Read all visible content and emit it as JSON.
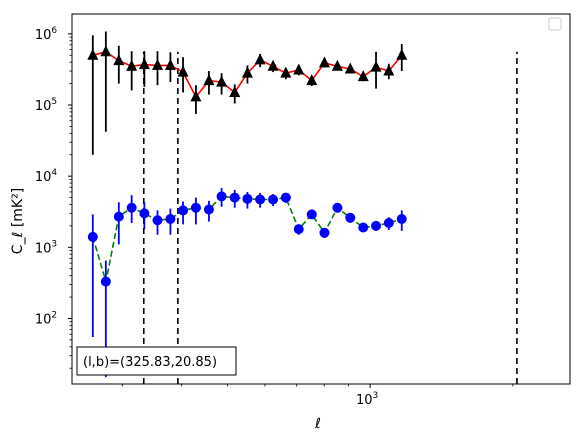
{
  "chart_data": {
    "type": "scatter",
    "title": "",
    "xlabel": "ℓ",
    "ylabel": "C_ℓ [mK²]",
    "xscale": "log",
    "yscale": "log",
    "xlim": [
      235,
      2640
    ],
    "ylim": [
      12,
      1900000
    ],
    "xticks": [
      {
        "value": 1000,
        "base": "10",
        "exp": "3"
      }
    ],
    "yticks": [
      {
        "value": 100,
        "base": "10",
        "exp": "2"
      },
      {
        "value": 1000,
        "base": "10",
        "exp": "3"
      },
      {
        "value": 10000,
        "base": "10",
        "exp": "4"
      },
      {
        "value": 100000,
        "base": "10",
        "exp": "5"
      },
      {
        "value": 1000000,
        "base": "10",
        "exp": "6"
      }
    ],
    "grid": false,
    "legend": {
      "position": "top-right",
      "entries": []
    },
    "annotation": "(l,b)=(325.83,20.85)",
    "vlines": [
      333,
      393,
      2040
    ],
    "series": [
      {
        "marker": "triangle",
        "color": "#000000",
        "line_color": "#ff0000",
        "line_style": "solid",
        "points": [
          {
            "x": 260,
            "y": 500000,
            "lo": 20000,
            "hi": 950000
          },
          {
            "x": 277,
            "y": 560000,
            "lo": 42000,
            "hi": 1080000
          },
          {
            "x": 295,
            "y": 420000,
            "lo": 200000,
            "hi": 680000
          },
          {
            "x": 314,
            "y": 350000,
            "lo": 160000,
            "hi": 570000
          },
          {
            "x": 334,
            "y": 370000,
            "lo": 180000,
            "hi": 570000
          },
          {
            "x": 356,
            "y": 360000,
            "lo": 190000,
            "hi": 570000
          },
          {
            "x": 379,
            "y": 360000,
            "lo": 210000,
            "hi": 550000
          },
          {
            "x": 403,
            "y": 290000,
            "lo": 150000,
            "hi": 470000
          },
          {
            "x": 429,
            "y": 130000,
            "lo": 75000,
            "hi": 190000
          },
          {
            "x": 457,
            "y": 220000,
            "lo": 140000,
            "hi": 300000
          },
          {
            "x": 486,
            "y": 210000,
            "lo": 140000,
            "hi": 280000
          },
          {
            "x": 518,
            "y": 150000,
            "lo": 105000,
            "hi": 195000
          },
          {
            "x": 551,
            "y": 280000,
            "lo": 200000,
            "hi": 360000
          },
          {
            "x": 586,
            "y": 430000,
            "lo": 340000,
            "hi": 520000
          },
          {
            "x": 624,
            "y": 350000,
            "lo": 290000,
            "hi": 410000
          },
          {
            "x": 664,
            "y": 280000,
            "lo": 230000,
            "hi": 330000
          },
          {
            "x": 707,
            "y": 310000,
            "lo": 260000,
            "hi": 360000
          },
          {
            "x": 753,
            "y": 220000,
            "lo": 185000,
            "hi": 255000
          },
          {
            "x": 801,
            "y": 390000,
            "lo": 340000,
            "hi": 440000
          },
          {
            "x": 853,
            "y": 350000,
            "lo": 310000,
            "hi": 390000
          },
          {
            "x": 908,
            "y": 320000,
            "lo": 280000,
            "hi": 360000
          },
          {
            "x": 967,
            "y": 250000,
            "lo": 215000,
            "hi": 285000
          },
          {
            "x": 1029,
            "y": 340000,
            "lo": 170000,
            "hi": 560000
          },
          {
            "x": 1095,
            "y": 300000,
            "lo": 230000,
            "hi": 380000
          },
          {
            "x": 1166,
            "y": 500000,
            "lo": 300000,
            "hi": 720000
          }
        ]
      },
      {
        "marker": "circle",
        "color": "#0000ff",
        "line_color": "#008000",
        "line_style": "dashed",
        "points": [
          {
            "x": 260,
            "y": 1400,
            "lo": 55,
            "hi": 2900
          },
          {
            "x": 277,
            "y": 330,
            "lo": 15,
            "hi": 650
          },
          {
            "x": 295,
            "y": 2700,
            "lo": 1100,
            "hi": 4300
          },
          {
            "x": 314,
            "y": 3600,
            "lo": 2200,
            "hi": 5400
          },
          {
            "x": 334,
            "y": 3000,
            "lo": 1800,
            "hi": 4300
          },
          {
            "x": 356,
            "y": 2400,
            "lo": 1500,
            "hi": 3300
          },
          {
            "x": 379,
            "y": 2500,
            "lo": 1500,
            "hi": 3500
          },
          {
            "x": 403,
            "y": 3300,
            "lo": 2100,
            "hi": 4400
          },
          {
            "x": 429,
            "y": 3600,
            "lo": 2100,
            "hi": 5000
          },
          {
            "x": 457,
            "y": 3400,
            "lo": 2300,
            "hi": 4500
          },
          {
            "x": 486,
            "y": 5200,
            "lo": 3700,
            "hi": 6800
          },
          {
            "x": 518,
            "y": 5000,
            "lo": 3600,
            "hi": 6400
          },
          {
            "x": 551,
            "y": 4800,
            "lo": 3500,
            "hi": 6000
          },
          {
            "x": 586,
            "y": 4700,
            "lo": 3600,
            "hi": 5800
          },
          {
            "x": 624,
            "y": 4700,
            "lo": 3800,
            "hi": 5600
          },
          {
            "x": 664,
            "y": 5000,
            "lo": 4200,
            "hi": 5800
          },
          {
            "x": 707,
            "y": 1800,
            "lo": 1500,
            "hi": 2100
          },
          {
            "x": 753,
            "y": 2900,
            "lo": 2500,
            "hi": 3300
          },
          {
            "x": 801,
            "y": 1600,
            "lo": 1350,
            "hi": 1850
          },
          {
            "x": 853,
            "y": 3600,
            "lo": 3100,
            "hi": 4100
          },
          {
            "x": 908,
            "y": 2600,
            "lo": 2200,
            "hi": 3000
          },
          {
            "x": 967,
            "y": 1900,
            "lo": 1650,
            "hi": 2150
          },
          {
            "x": 1029,
            "y": 2000,
            "lo": 1700,
            "hi": 2300
          },
          {
            "x": 1095,
            "y": 2200,
            "lo": 1750,
            "hi": 2650
          },
          {
            "x": 1166,
            "y": 2500,
            "lo": 1700,
            "hi": 3300
          }
        ]
      }
    ]
  }
}
